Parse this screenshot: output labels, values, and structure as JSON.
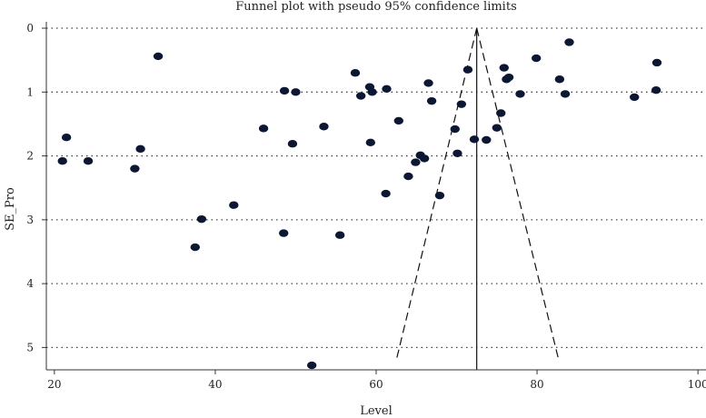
{
  "chart_data": {
    "type": "scatter",
    "title": "Funnel plot with pseudo 95% confidence limits",
    "xlabel": "Level",
    "ylabel": "SE_Pro",
    "xlim": [
      19,
      101
    ],
    "ylim": [
      5.35,
      -0.1
    ],
    "y_reversed": true,
    "x_ticks": [
      20,
      40,
      60,
      80,
      100
    ],
    "y_ticks": [
      0,
      1,
      2,
      3,
      4,
      5
    ],
    "grid": "horizontal dotted",
    "funnel": {
      "center": 72.5,
      "ci_lower": [
        [
          72.5,
          0
        ],
        [
          62.5,
          5.2
        ]
      ],
      "ci_upper": [
        [
          72.5,
          0
        ],
        [
          82.7,
          5.2
        ]
      ]
    },
    "points": [
      [
        21,
        2.08
      ],
      [
        21.5,
        1.71
      ],
      [
        24.2,
        2.08
      ],
      [
        30,
        2.2
      ],
      [
        30.7,
        1.89
      ],
      [
        32.9,
        0.44
      ],
      [
        37.5,
        3.43
      ],
      [
        38.3,
        2.99
      ],
      [
        42.3,
        2.77
      ],
      [
        46,
        1.57
      ],
      [
        48.5,
        3.21
      ],
      [
        48.6,
        0.98
      ],
      [
        49.6,
        1.81
      ],
      [
        50,
        1.0
      ],
      [
        53.5,
        1.54
      ],
      [
        55.5,
        3.24
      ],
      [
        57.4,
        0.7
      ],
      [
        58.1,
        1.06
      ],
      [
        59.2,
        0.92
      ],
      [
        59.3,
        1.79
      ],
      [
        59.5,
        1.0
      ],
      [
        61.3,
        0.95
      ],
      [
        61.2,
        2.59
      ],
      [
        62.8,
        1.45
      ],
      [
        64,
        2.32
      ],
      [
        64.9,
        2.1
      ],
      [
        65.5,
        1.99
      ],
      [
        66,
        2.04
      ],
      [
        66.5,
        0.86
      ],
      [
        66.9,
        1.14
      ],
      [
        67.9,
        2.62
      ],
      [
        69.8,
        1.58
      ],
      [
        70.1,
        1.96
      ],
      [
        70.6,
        1.19
      ],
      [
        71.4,
        0.65
      ],
      [
        72.2,
        1.74
      ],
      [
        73.7,
        1.75
      ],
      [
        75,
        1.56
      ],
      [
        75.5,
        1.33
      ],
      [
        75.9,
        0.62
      ],
      [
        76.2,
        0.8
      ],
      [
        76.5,
        0.77
      ],
      [
        77.9,
        1.03
      ],
      [
        79.9,
        0.47
      ],
      [
        82.8,
        0.8
      ],
      [
        83.5,
        1.03
      ],
      [
        84,
        0.22
      ],
      [
        92.1,
        1.08
      ],
      [
        94.8,
        0.97
      ],
      [
        94.9,
        0.54
      ],
      [
        52,
        5.28
      ]
    ]
  },
  "colors": {
    "points": "#0b1733",
    "axis": "#333333",
    "grid": "#444444"
  }
}
